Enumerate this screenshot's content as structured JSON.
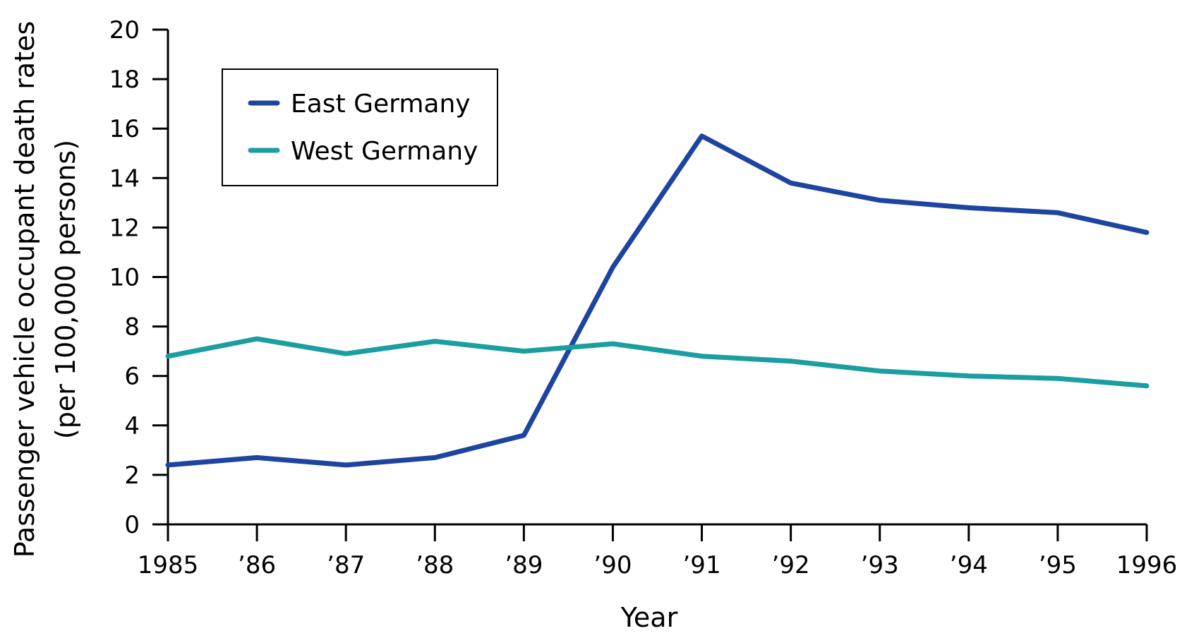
{
  "chart_data": {
    "type": "line",
    "title": "",
    "xlabel": "Year",
    "ylabel": "Passenger vehicle occupant death rates",
    "ylabel_sub": "(per 100,000 persons)",
    "categories": [
      "1985",
      "’86",
      "’87",
      "’88",
      "’89",
      "’90",
      "’91",
      "’92",
      "’93",
      "’94",
      "’95",
      "1996"
    ],
    "ylim": [
      0,
      20
    ],
    "yticks": [
      "0",
      "2",
      "4",
      "6",
      "8",
      "10",
      "12",
      "14",
      "16",
      "18",
      "20"
    ],
    "grid": false,
    "legend_position": "top-left",
    "series": [
      {
        "name": "East Germany",
        "color": "#1d45a0",
        "values": [
          2.4,
          2.7,
          2.4,
          2.7,
          3.6,
          10.4,
          15.7,
          13.8,
          13.1,
          12.8,
          12.6,
          11.8
        ]
      },
      {
        "name": "West Germany",
        "color": "#1a9ea0",
        "values": [
          6.8,
          7.5,
          6.9,
          7.4,
          7.0,
          7.3,
          6.8,
          6.6,
          6.2,
          6.0,
          5.9,
          5.6
        ]
      }
    ]
  }
}
